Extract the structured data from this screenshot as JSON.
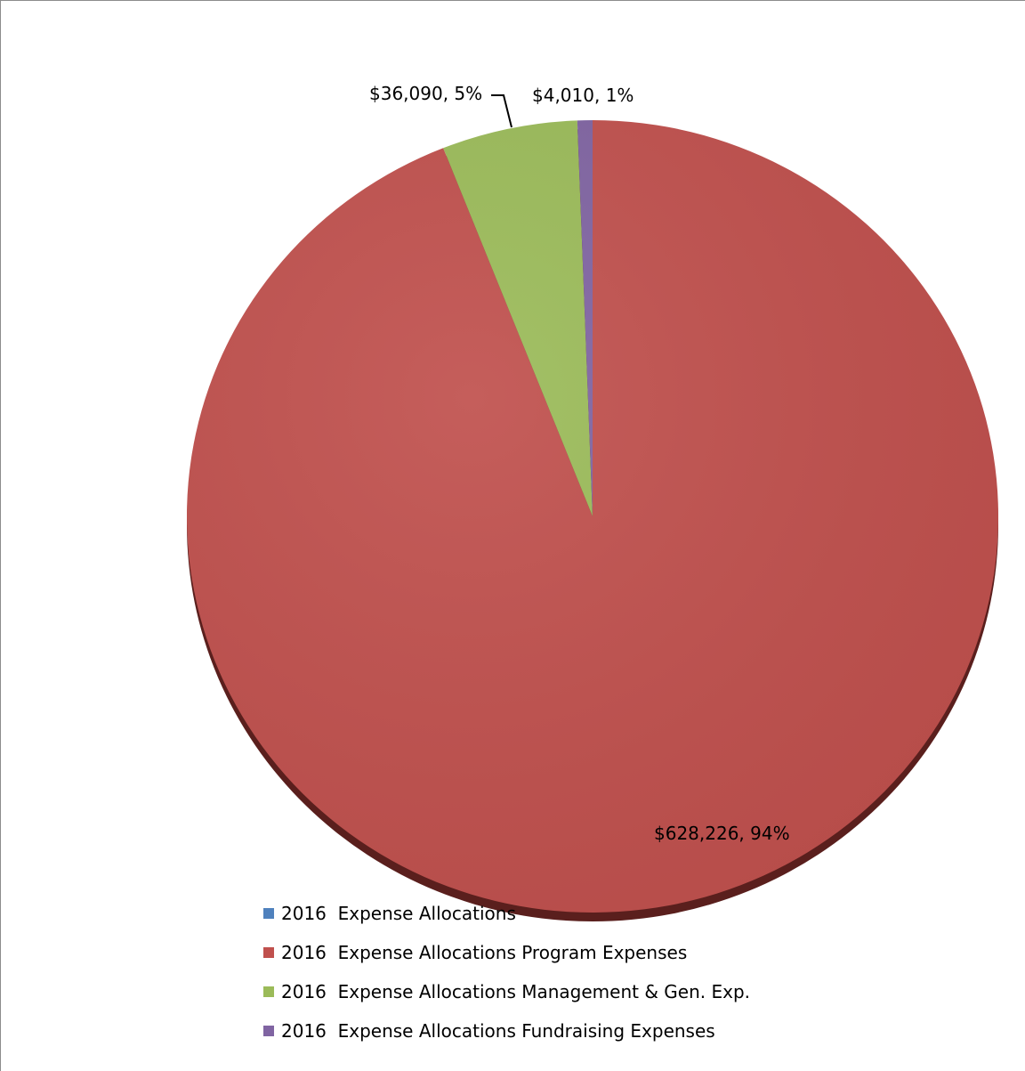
{
  "chart_data": {
    "type": "pie",
    "title": "",
    "slices": [
      {
        "label": "2016  Expense Allocations",
        "value": 0,
        "percent": 0,
        "data_label": "",
        "color": "#4f81bd"
      },
      {
        "label": "2016  Expense Allocations Program Expenses",
        "value": 628226,
        "percent": 94,
        "data_label": "$628,226, 94%",
        "color": "#c0504d"
      },
      {
        "label": "2016  Expense Allocations Management & Gen. Exp.",
        "value": 36090,
        "percent": 5,
        "data_label": "$36,090, 5%",
        "color": "#9bbb59"
      },
      {
        "label": "2016  Expense Allocations Fundraising Expenses",
        "value": 4010,
        "percent": 1,
        "data_label": "$4,010, 1%",
        "color": "#8064a2"
      }
    ],
    "legend_position": "bottom"
  }
}
